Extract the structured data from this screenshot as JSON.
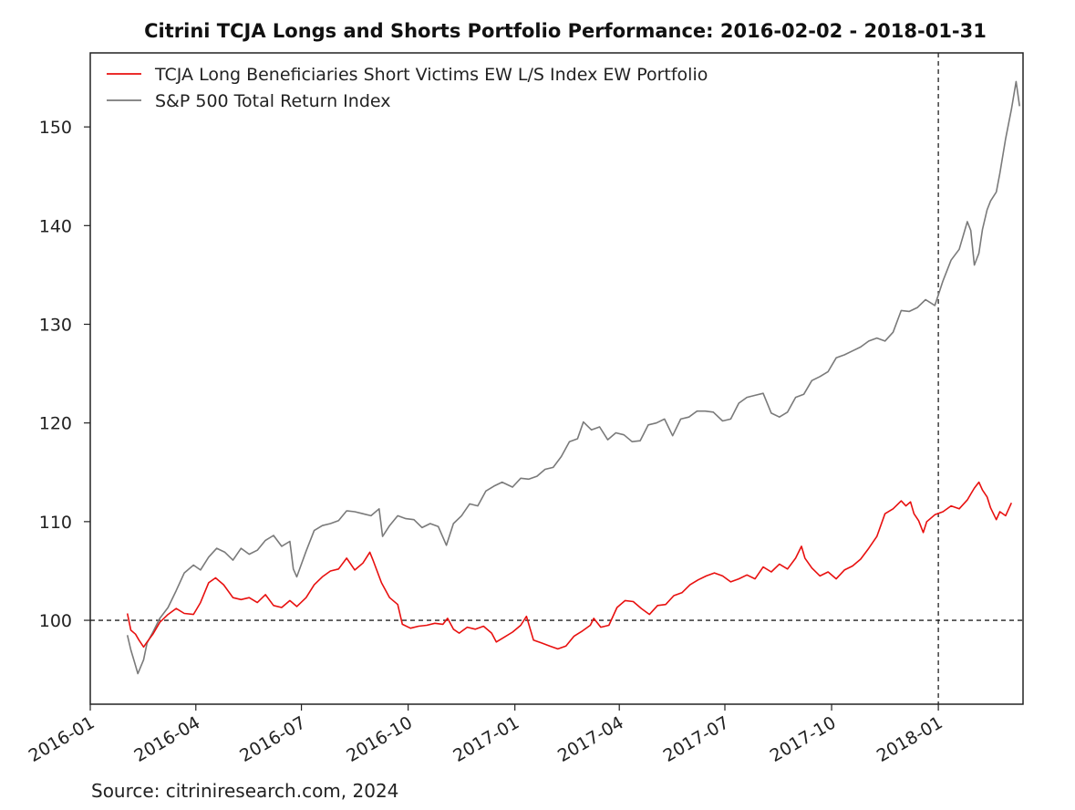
{
  "chart_data": {
    "type": "line",
    "title": "Citrini TCJA Longs and Shorts Portfolio Performance: 2016-02-02 - 2018-01-31",
    "source": "Source: citriniresearch.com, 2024",
    "xlabel": "",
    "ylabel": "",
    "x_tick_labels": [
      "2016-01",
      "2016-04",
      "2016-07",
      "2016-10",
      "2017-01",
      "2017-04",
      "2017-07",
      "2017-10",
      "2018-01"
    ],
    "y_tick_labels": [
      "100",
      "110",
      "120",
      "130",
      "140",
      "150"
    ],
    "y_ticks": [
      100,
      110,
      120,
      130,
      140,
      150
    ],
    "ylim": [
      91.5,
      157.5
    ],
    "xlim": [
      "2016-01-01",
      "2018-03-15"
    ],
    "grid": false,
    "legend_position": "top-left",
    "reference_lines": {
      "horizontal_y": 100,
      "vertical_x": "2018-01-01"
    },
    "series": [
      {
        "name": "TCJA Long Beneficiaries Short Victims EW L/S Index EW Portfolio",
        "color": "#e8100f",
        "points": [
          [
            "2016-02-02",
            100.7
          ],
          [
            "2016-02-05",
            99.0
          ],
          [
            "2016-02-09",
            98.6
          ],
          [
            "2016-02-12",
            98.0
          ],
          [
            "2016-02-16",
            97.3
          ],
          [
            "2016-02-19",
            97.8
          ],
          [
            "2016-02-24",
            98.6
          ],
          [
            "2016-03-01",
            99.8
          ],
          [
            "2016-03-08",
            100.6
          ],
          [
            "2016-03-15",
            101.2
          ],
          [
            "2016-03-22",
            100.7
          ],
          [
            "2016-03-30",
            100.6
          ],
          [
            "2016-04-05",
            101.8
          ],
          [
            "2016-04-12",
            103.8
          ],
          [
            "2016-04-18",
            104.3
          ],
          [
            "2016-04-25",
            103.6
          ],
          [
            "2016-05-03",
            102.3
          ],
          [
            "2016-05-10",
            102.1
          ],
          [
            "2016-05-17",
            102.3
          ],
          [
            "2016-05-24",
            101.8
          ],
          [
            "2016-05-31",
            102.6
          ],
          [
            "2016-06-07",
            101.5
          ],
          [
            "2016-06-14",
            101.3
          ],
          [
            "2016-06-21",
            102.0
          ],
          [
            "2016-06-27",
            101.4
          ],
          [
            "2016-07-05",
            102.3
          ],
          [
            "2016-07-12",
            103.6
          ],
          [
            "2016-07-19",
            104.4
          ],
          [
            "2016-07-26",
            105.0
          ],
          [
            "2016-08-02",
            105.2
          ],
          [
            "2016-08-09",
            106.3
          ],
          [
            "2016-08-16",
            105.1
          ],
          [
            "2016-08-23",
            105.8
          ],
          [
            "2016-08-29",
            106.9
          ],
          [
            "2016-09-01",
            106.0
          ],
          [
            "2016-09-08",
            103.8
          ],
          [
            "2016-09-15",
            102.3
          ],
          [
            "2016-09-22",
            101.6
          ],
          [
            "2016-09-26",
            99.6
          ],
          [
            "2016-10-03",
            99.2
          ],
          [
            "2016-10-10",
            99.4
          ],
          [
            "2016-10-17",
            99.5
          ],
          [
            "2016-10-24",
            99.7
          ],
          [
            "2016-10-31",
            99.6
          ],
          [
            "2016-11-04",
            100.2
          ],
          [
            "2016-11-09",
            99.1
          ],
          [
            "2016-11-14",
            98.7
          ],
          [
            "2016-11-21",
            99.3
          ],
          [
            "2016-11-28",
            99.1
          ],
          [
            "2016-12-05",
            99.4
          ],
          [
            "2016-12-12",
            98.7
          ],
          [
            "2016-12-16",
            97.8
          ],
          [
            "2016-12-23",
            98.3
          ],
          [
            "2016-12-30",
            98.8
          ],
          [
            "2017-01-06",
            99.5
          ],
          [
            "2017-01-11",
            100.4
          ],
          [
            "2017-01-17",
            98.0
          ],
          [
            "2017-01-24",
            97.7
          ],
          [
            "2017-01-31",
            97.4
          ],
          [
            "2017-02-07",
            97.1
          ],
          [
            "2017-02-14",
            97.4
          ],
          [
            "2017-02-21",
            98.4
          ],
          [
            "2017-02-28",
            98.9
          ],
          [
            "2017-03-07",
            99.5
          ],
          [
            "2017-03-10",
            100.2
          ],
          [
            "2017-03-16",
            99.3
          ],
          [
            "2017-03-23",
            99.5
          ],
          [
            "2017-03-30",
            101.3
          ],
          [
            "2017-04-06",
            102.0
          ],
          [
            "2017-04-13",
            101.9
          ],
          [
            "2017-04-20",
            101.2
          ],
          [
            "2017-04-27",
            100.6
          ],
          [
            "2017-05-04",
            101.5
          ],
          [
            "2017-05-11",
            101.6
          ],
          [
            "2017-05-18",
            102.5
          ],
          [
            "2017-05-25",
            102.8
          ],
          [
            "2017-06-01",
            103.6
          ],
          [
            "2017-06-08",
            104.1
          ],
          [
            "2017-06-15",
            104.5
          ],
          [
            "2017-06-22",
            104.8
          ],
          [
            "2017-06-29",
            104.5
          ],
          [
            "2017-07-06",
            103.9
          ],
          [
            "2017-07-13",
            104.2
          ],
          [
            "2017-07-20",
            104.6
          ],
          [
            "2017-07-27",
            104.2
          ],
          [
            "2017-08-03",
            105.4
          ],
          [
            "2017-08-10",
            104.9
          ],
          [
            "2017-08-17",
            105.7
          ],
          [
            "2017-08-24",
            105.2
          ],
          [
            "2017-08-31",
            106.3
          ],
          [
            "2017-09-05",
            107.5
          ],
          [
            "2017-09-08",
            106.3
          ],
          [
            "2017-09-14",
            105.3
          ],
          [
            "2017-09-21",
            104.5
          ],
          [
            "2017-09-28",
            104.9
          ],
          [
            "2017-10-05",
            104.2
          ],
          [
            "2017-10-12",
            105.1
          ],
          [
            "2017-10-19",
            105.5
          ],
          [
            "2017-10-26",
            106.2
          ],
          [
            "2017-11-02",
            107.3
          ],
          [
            "2017-11-09",
            108.5
          ],
          [
            "2017-11-16",
            110.8
          ],
          [
            "2017-11-23",
            111.3
          ],
          [
            "2017-11-30",
            112.1
          ],
          [
            "2017-12-04",
            111.6
          ],
          [
            "2017-12-08",
            112.0
          ],
          [
            "2017-12-11",
            110.8
          ],
          [
            "2017-12-15",
            110.1
          ],
          [
            "2017-12-19",
            108.9
          ],
          [
            "2017-12-22",
            110.0
          ],
          [
            "2017-12-29",
            110.7
          ],
          [
            "2018-01-05",
            111.0
          ],
          [
            "2018-01-12",
            111.6
          ],
          [
            "2018-01-19",
            111.3
          ],
          [
            "2018-01-26",
            112.2
          ],
          [
            "2018-01-29",
            112.8
          ],
          [
            "2018-02-01",
            113.4
          ],
          [
            "2018-02-05",
            114.0
          ],
          [
            "2018-02-08",
            113.2
          ],
          [
            "2018-02-12",
            112.5
          ],
          [
            "2018-02-15",
            111.4
          ],
          [
            "2018-02-20",
            110.2
          ],
          [
            "2018-02-23",
            111.0
          ],
          [
            "2018-02-28",
            110.6
          ],
          [
            "2018-03-05",
            111.9
          ]
        ]
      },
      {
        "name": "S&P 500 Total Return Index",
        "color": "#7a7a7a",
        "points": [
          [
            "2016-02-02",
            98.5
          ],
          [
            "2016-02-05",
            97.0
          ],
          [
            "2016-02-08",
            95.8
          ],
          [
            "2016-02-11",
            94.6
          ],
          [
            "2016-02-16",
            96.0
          ],
          [
            "2016-02-19",
            97.7
          ],
          [
            "2016-02-24",
            98.8
          ],
          [
            "2016-03-01",
            100.2
          ],
          [
            "2016-03-08",
            101.3
          ],
          [
            "2016-03-15",
            103.0
          ],
          [
            "2016-03-22",
            104.8
          ],
          [
            "2016-03-30",
            105.6
          ],
          [
            "2016-04-05",
            105.1
          ],
          [
            "2016-04-12",
            106.4
          ],
          [
            "2016-04-19",
            107.3
          ],
          [
            "2016-04-26",
            106.9
          ],
          [
            "2016-05-03",
            106.1
          ],
          [
            "2016-05-10",
            107.3
          ],
          [
            "2016-05-17",
            106.7
          ],
          [
            "2016-05-24",
            107.1
          ],
          [
            "2016-05-31",
            108.1
          ],
          [
            "2016-06-07",
            108.6
          ],
          [
            "2016-06-14",
            107.5
          ],
          [
            "2016-06-21",
            108.0
          ],
          [
            "2016-06-24",
            105.2
          ],
          [
            "2016-06-27",
            104.4
          ],
          [
            "2016-07-05",
            107.0
          ],
          [
            "2016-07-12",
            109.1
          ],
          [
            "2016-07-19",
            109.6
          ],
          [
            "2016-07-26",
            109.8
          ],
          [
            "2016-08-02",
            110.1
          ],
          [
            "2016-08-09",
            111.1
          ],
          [
            "2016-08-16",
            111.0
          ],
          [
            "2016-08-23",
            110.8
          ],
          [
            "2016-08-30",
            110.6
          ],
          [
            "2016-09-06",
            111.3
          ],
          [
            "2016-09-09",
            108.5
          ],
          [
            "2016-09-15",
            109.6
          ],
          [
            "2016-09-22",
            110.6
          ],
          [
            "2016-09-29",
            110.3
          ],
          [
            "2016-10-06",
            110.2
          ],
          [
            "2016-10-13",
            109.4
          ],
          [
            "2016-10-20",
            109.8
          ],
          [
            "2016-10-27",
            109.5
          ],
          [
            "2016-11-03",
            107.6
          ],
          [
            "2016-11-09",
            109.8
          ],
          [
            "2016-11-16",
            110.6
          ],
          [
            "2016-11-23",
            111.8
          ],
          [
            "2016-11-30",
            111.6
          ],
          [
            "2016-12-07",
            113.1
          ],
          [
            "2016-12-14",
            113.6
          ],
          [
            "2016-12-21",
            114.0
          ],
          [
            "2016-12-30",
            113.5
          ],
          [
            "2017-01-06",
            114.4
          ],
          [
            "2017-01-13",
            114.3
          ],
          [
            "2017-01-20",
            114.6
          ],
          [
            "2017-01-27",
            115.3
          ],
          [
            "2017-02-03",
            115.5
          ],
          [
            "2017-02-10",
            116.6
          ],
          [
            "2017-02-17",
            118.1
          ],
          [
            "2017-02-24",
            118.4
          ],
          [
            "2017-03-01",
            120.1
          ],
          [
            "2017-03-08",
            119.3
          ],
          [
            "2017-03-15",
            119.6
          ],
          [
            "2017-03-22",
            118.3
          ],
          [
            "2017-03-29",
            119.0
          ],
          [
            "2017-04-05",
            118.8
          ],
          [
            "2017-04-12",
            118.1
          ],
          [
            "2017-04-19",
            118.2
          ],
          [
            "2017-04-26",
            119.8
          ],
          [
            "2017-05-03",
            120.0
          ],
          [
            "2017-05-10",
            120.4
          ],
          [
            "2017-05-17",
            118.7
          ],
          [
            "2017-05-24",
            120.4
          ],
          [
            "2017-05-31",
            120.6
          ],
          [
            "2017-06-07",
            121.2
          ],
          [
            "2017-06-14",
            121.2
          ],
          [
            "2017-06-21",
            121.1
          ],
          [
            "2017-06-29",
            120.2
          ],
          [
            "2017-07-06",
            120.4
          ],
          [
            "2017-07-13",
            122.0
          ],
          [
            "2017-07-20",
            122.6
          ],
          [
            "2017-07-27",
            122.8
          ],
          [
            "2017-08-03",
            123.0
          ],
          [
            "2017-08-10",
            121.0
          ],
          [
            "2017-08-17",
            120.6
          ],
          [
            "2017-08-24",
            121.1
          ],
          [
            "2017-08-31",
            122.6
          ],
          [
            "2017-09-07",
            122.9
          ],
          [
            "2017-09-14",
            124.3
          ],
          [
            "2017-09-21",
            124.7
          ],
          [
            "2017-09-28",
            125.2
          ],
          [
            "2017-10-05",
            126.6
          ],
          [
            "2017-10-12",
            126.9
          ],
          [
            "2017-10-19",
            127.3
          ],
          [
            "2017-10-26",
            127.7
          ],
          [
            "2017-11-02",
            128.3
          ],
          [
            "2017-11-09",
            128.6
          ],
          [
            "2017-11-16",
            128.3
          ],
          [
            "2017-11-23",
            129.2
          ],
          [
            "2017-11-30",
            131.4
          ],
          [
            "2017-12-07",
            131.3
          ],
          [
            "2017-12-14",
            131.7
          ],
          [
            "2017-12-21",
            132.5
          ],
          [
            "2017-12-29",
            131.9
          ],
          [
            "2018-01-05",
            134.4
          ],
          [
            "2018-01-12",
            136.5
          ],
          [
            "2018-01-19",
            137.6
          ],
          [
            "2018-01-26",
            140.4
          ],
          [
            "2018-01-29",
            139.5
          ],
          [
            "2018-02-01",
            136.0
          ],
          [
            "2018-02-05",
            137.2
          ],
          [
            "2018-02-08",
            139.6
          ],
          [
            "2018-02-12",
            141.6
          ],
          [
            "2018-02-15",
            142.5
          ],
          [
            "2018-02-20",
            143.4
          ],
          [
            "2018-02-23",
            145.3
          ],
          [
            "2018-02-28",
            148.8
          ],
          [
            "2018-03-05",
            151.8
          ],
          [
            "2018-03-09",
            154.6
          ],
          [
            "2018-03-12",
            152.1
          ]
        ]
      }
    ]
  }
}
